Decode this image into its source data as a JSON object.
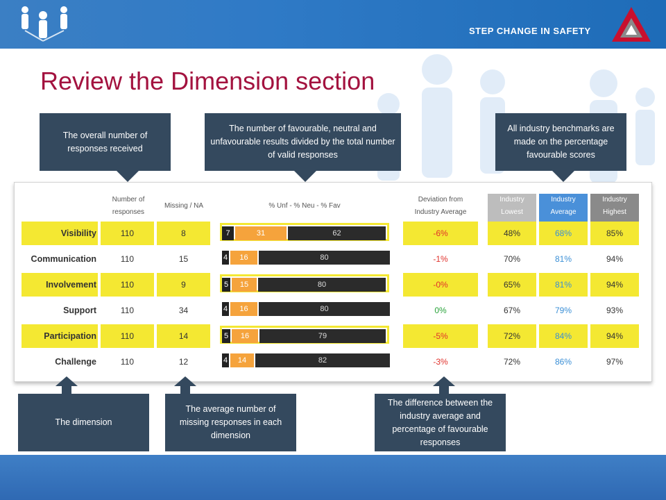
{
  "header": {
    "brand_text": "STEP CHANGE IN SAFETY"
  },
  "title": "Review the Dimension section",
  "callouts": {
    "overall": "The overall number of responses received",
    "favourable": "The number of favourable, neutral and unfavourable results divided by the total number of valid responses",
    "benchmarks": "All industry benchmarks are made on the percentage favourable scores",
    "dimension": "The dimension",
    "missing": "The average number of missing responses in each dimension",
    "difference": "The difference between the industry average and percentage of favourable responses"
  },
  "table": {
    "headers": {
      "responses": [
        "Number of",
        "responses"
      ],
      "missing": "Missing / NA",
      "bar": "% Unf - % Neu - % Fav",
      "deviation": [
        "Deviation from",
        "Industry Average"
      ],
      "lowest": [
        "Industry",
        "Lowest"
      ],
      "average": [
        "Industry",
        "Average"
      ],
      "highest": [
        "Industry",
        "Highest"
      ]
    },
    "rows": [
      {
        "name": "Visibility",
        "responses": "110",
        "missing": "8",
        "unf": 7,
        "neu": 31,
        "fav": 62,
        "deviation": "-6%",
        "lowest": "48%",
        "average": "68%",
        "highest": "85%",
        "highlight": true
      },
      {
        "name": "Communication",
        "responses": "110",
        "missing": "15",
        "unf": 4,
        "neu": 16,
        "fav": 80,
        "deviation": "-1%",
        "lowest": "70%",
        "average": "81%",
        "highest": "94%",
        "highlight": false
      },
      {
        "name": "Involvement",
        "responses": "110",
        "missing": "9",
        "unf": 5,
        "neu": 15,
        "fav": 80,
        "deviation": "-0%",
        "lowest": "65%",
        "average": "81%",
        "highest": "94%",
        "highlight": true
      },
      {
        "name": "Support",
        "responses": "110",
        "missing": "34",
        "unf": 4,
        "neu": 16,
        "fav": 80,
        "deviation": "0%",
        "lowest": "67%",
        "average": "79%",
        "highest": "93%",
        "highlight": false
      },
      {
        "name": "Participation",
        "responses": "110",
        "missing": "14",
        "unf": 5,
        "neu": 16,
        "fav": 79,
        "deviation": "-5%",
        "lowest": "72%",
        "average": "84%",
        "highest": "94%",
        "highlight": true
      },
      {
        "name": "Challenge",
        "responses": "110",
        "missing": "12",
        "unf": 4,
        "neu": 14,
        "fav": 82,
        "deviation": "-3%",
        "lowest": "72%",
        "average": "86%",
        "highest": "97%",
        "highlight": false
      }
    ]
  },
  "colors": {
    "title": "#a3123f",
    "highlight": "#f4e832",
    "negative": "#e0312b",
    "positive": "#29a33a",
    "average": "#3a8fd6",
    "lowest_header": "#bdbdbd",
    "average_header": "#4a90d9",
    "highest_header": "#8a8a8a"
  }
}
